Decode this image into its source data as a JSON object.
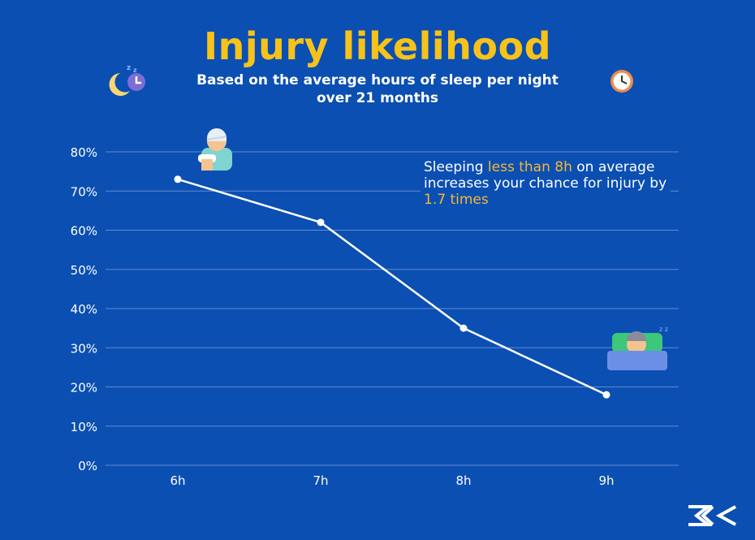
{
  "title": "Injury likelihood",
  "subtitle_line1": "Based on the average hours of sleep per night",
  "subtitle_line2": "over 21 months",
  "note": {
    "part1": "Sleeping ",
    "highlight1": "less than 8h",
    "part2": " on average increases your chance for injury by ",
    "highlight2": "1.7 times"
  },
  "colors": {
    "background": "#0b4fb3",
    "title": "#f7c21a",
    "highlight": "#f7b731",
    "line": "#ffffff"
  },
  "icons": [
    "moon-clock-icon",
    "alarm-clock-icon",
    "injured-person-icon",
    "sleeping-person-icon",
    "brand-logo-icon"
  ],
  "chart_data": {
    "type": "line",
    "categories": [
      "6h",
      "7h",
      "8h",
      "9h"
    ],
    "series": [
      {
        "values": [
          73,
          62,
          35,
          18
        ]
      }
    ],
    "ylim": [
      0,
      80
    ],
    "yticks": [
      "0%",
      "10%",
      "20%",
      "30%",
      "40%",
      "50%",
      "60%",
      "70%",
      "80%"
    ],
    "grid": true,
    "xlabel": "",
    "ylabel": ""
  }
}
